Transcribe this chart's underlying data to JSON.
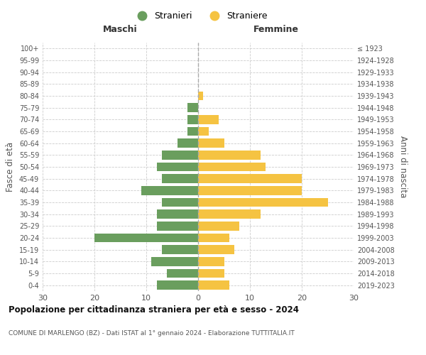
{
  "age_groups": [
    "0-4",
    "5-9",
    "10-14",
    "15-19",
    "20-24",
    "25-29",
    "30-34",
    "35-39",
    "40-44",
    "45-49",
    "50-54",
    "55-59",
    "60-64",
    "65-69",
    "70-74",
    "75-79",
    "80-84",
    "85-89",
    "90-94",
    "95-99",
    "100+"
  ],
  "birth_years": [
    "2019-2023",
    "2014-2018",
    "2009-2013",
    "2004-2008",
    "1999-2003",
    "1994-1998",
    "1989-1993",
    "1984-1988",
    "1979-1983",
    "1974-1978",
    "1969-1973",
    "1964-1968",
    "1959-1963",
    "1954-1958",
    "1949-1953",
    "1944-1948",
    "1939-1943",
    "1934-1938",
    "1929-1933",
    "1924-1928",
    "≤ 1923"
  ],
  "males": [
    8,
    6,
    9,
    7,
    20,
    8,
    8,
    7,
    11,
    7,
    8,
    7,
    4,
    2,
    2,
    2,
    0,
    0,
    0,
    0,
    0
  ],
  "females": [
    6,
    5,
    5,
    7,
    6,
    8,
    12,
    25,
    20,
    20,
    13,
    12,
    5,
    2,
    4,
    0,
    1,
    0,
    0,
    0,
    0
  ],
  "male_color": "#6a9e5e",
  "female_color": "#f5c342",
  "background_color": "#ffffff",
  "grid_color": "#cccccc",
  "title": "Popolazione per cittadinanza straniera per età e sesso - 2024",
  "subtitle": "COMUNE DI MARLENGO (BZ) - Dati ISTAT al 1° gennaio 2024 - Elaborazione TUTTITALIA.IT",
  "xlabel_left": "Maschi",
  "xlabel_right": "Femmine",
  "ylabel_left": "Fasce di età",
  "ylabel_right": "Anni di nascita",
  "xlim": 30,
  "legend_stranieri": "Stranieri",
  "legend_straniere": "Straniere"
}
